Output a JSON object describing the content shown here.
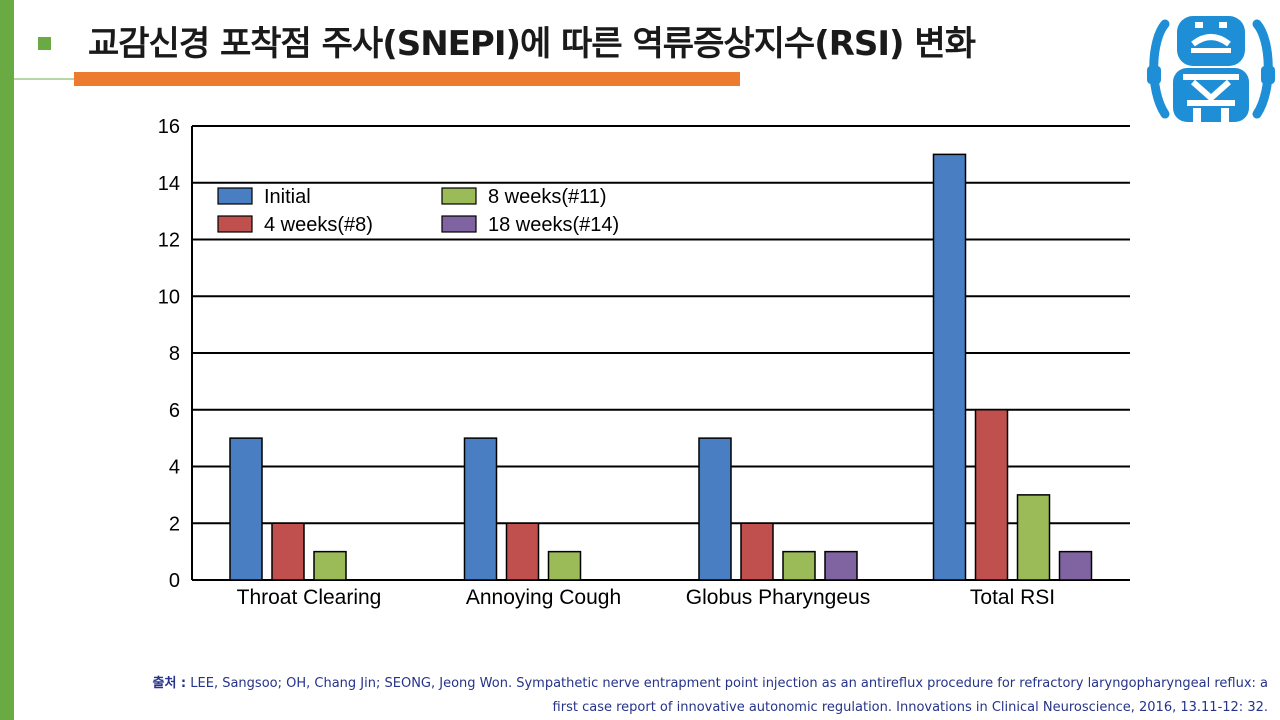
{
  "page": {
    "title": "교감신경 포착점 주사(SNEPI)에 따른 역류증상지수(RSI) 변화",
    "source_label": "출처 :",
    "source_line1": "LEE, Sangsoo; OH, Chang Jin; SEONG, Jeong Won. Sympathetic nerve entrapment point injection as an antireflux procedure for refractory laryngopharyngeal reflux: a",
    "source_line2": "first case report of innovative autonomic regulation. Innovations in Clinical Neuroscience, 2016, 13.11-12: 32.",
    "logo_icon": "hospital-robot-logo-icon"
  },
  "colors": {
    "accent_green": "#6aaa43",
    "accent_orange": "#ec7a2f",
    "logo_blue": "#1e8fd6",
    "source_text": "#25338a"
  },
  "chart_data": {
    "type": "bar",
    "title": "",
    "xlabel": "",
    "ylabel": "",
    "categories": [
      "Throat Clearing",
      "Annoying Cough",
      "Globus Pharyngeus",
      "Total RSI"
    ],
    "series": [
      {
        "name": "Initial",
        "color": "#4a7ec2",
        "values": [
          5,
          5,
          5,
          15
        ]
      },
      {
        "name": "4 weeks(#8)",
        "color": "#c0504d",
        "values": [
          2,
          2,
          2,
          6
        ]
      },
      {
        "name": "8 weeks(#11)",
        "color": "#9bbb59",
        "values": [
          1,
          1,
          1,
          3
        ]
      },
      {
        "name": "18 weeks(#14)",
        "color": "#8064a2",
        "values": [
          null,
          null,
          1,
          1
        ]
      }
    ],
    "ylim": [
      0,
      16
    ],
    "yticks": [
      0,
      2,
      4,
      6,
      8,
      10,
      12,
      14,
      16
    ],
    "grid": true,
    "legend_position": "top-left"
  }
}
